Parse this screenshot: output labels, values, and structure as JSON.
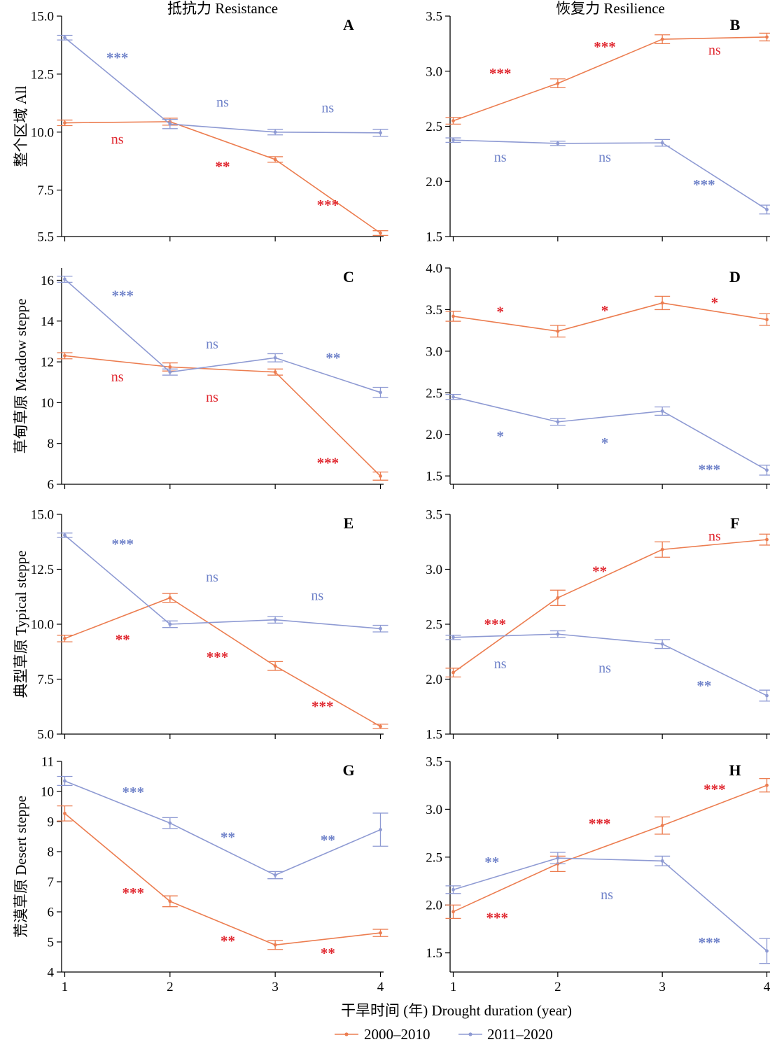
{
  "figure": {
    "column_titles": [
      "抵抗力 Resistance",
      "恢复力 Resilience"
    ],
    "x_axis_title": "干旱时间 (年) Drought duration (year)",
    "legend": [
      {
        "label": "2000–2010",
        "color": "#ec7d50"
      },
      {
        "label": "2011–2020",
        "color": "#8e9ad3"
      }
    ]
  },
  "chart_data": [
    {
      "type": "line",
      "panel": "A",
      "row_label": "整个区域 All",
      "x": [
        1,
        2,
        3,
        4
      ],
      "xlim": [
        0.97,
        4.03
      ],
      "ylim": [
        5.5,
        15.0
      ],
      "yticks": [
        5.5,
        7.5,
        10.0,
        12.5,
        15.0
      ],
      "yticklabels": [
        "5.5",
        "7.5",
        "10.0",
        "12.5",
        "15.0"
      ],
      "series": [
        {
          "name": "2000–2010",
          "values": [
            10.4,
            10.45,
            8.82,
            5.65
          ],
          "errors": [
            0.12,
            0.15,
            0.12,
            0.1
          ],
          "annotations": [
            {
              "text": "ns",
              "x": 1.5,
              "y": 9.5
            },
            {
              "text": "**",
              "x": 2.5,
              "y": 8.6
            },
            {
              "text": "***",
              "x": 3.5,
              "y": 6.95
            }
          ]
        },
        {
          "name": "2011–2020",
          "values": [
            14.07,
            10.35,
            10.0,
            9.97
          ],
          "errors": [
            0.1,
            0.2,
            0.12,
            0.15
          ],
          "annotations": [
            {
              "text": "***",
              "x": 1.5,
              "y": 13.3
            },
            {
              "text": "ns",
              "x": 2.5,
              "y": 11.1
            },
            {
              "text": "ns",
              "x": 3.5,
              "y": 10.85
            }
          ]
        }
      ]
    },
    {
      "type": "line",
      "panel": "B",
      "x": [
        1,
        2,
        3,
        4
      ],
      "xlim": [
        0.97,
        4.03
      ],
      "ylim": [
        1.5,
        3.5
      ],
      "yticks": [
        1.5,
        2.0,
        2.5,
        3.0,
        3.5
      ],
      "yticklabels": [
        "1.5",
        "2.0",
        "2.5",
        "3.0",
        "3.5"
      ],
      "series": [
        {
          "name": "2000–2010",
          "values": [
            2.55,
            2.89,
            3.29,
            3.31
          ],
          "errors": [
            0.03,
            0.04,
            0.04,
            0.035
          ],
          "annotations": [
            {
              "text": "***",
              "x": 1.45,
              "y": 3.0
            },
            {
              "text": "***",
              "x": 2.45,
              "y": 3.24
            },
            {
              "text": "ns",
              "x": 3.5,
              "y": 3.15
            }
          ]
        },
        {
          "name": "2011–2020",
          "values": [
            2.375,
            2.345,
            2.35,
            1.745
          ],
          "errors": [
            0.02,
            0.02,
            0.03,
            0.04
          ],
          "annotations": [
            {
              "text": "ns",
              "x": 1.45,
              "y": 2.18
            },
            {
              "text": "ns",
              "x": 2.45,
              "y": 2.18
            },
            {
              "text": "***",
              "x": 3.4,
              "y": 1.99
            }
          ]
        }
      ]
    },
    {
      "type": "line",
      "panel": "C",
      "row_label": "草甸草原 Meadow steppe",
      "x": [
        1,
        2,
        3,
        4
      ],
      "xlim": [
        0.97,
        4.03
      ],
      "ylim": [
        6.0,
        16.6
      ],
      "yticks": [
        6,
        8,
        10,
        12,
        14,
        16
      ],
      "yticklabels": [
        "6",
        "8",
        "10",
        "12",
        "14",
        "16"
      ],
      "series": [
        {
          "name": "2000–2010",
          "values": [
            12.3,
            11.75,
            11.5,
            6.4
          ],
          "errors": [
            0.15,
            0.2,
            0.15,
            0.2
          ],
          "annotations": [
            {
              "text": "ns",
              "x": 1.5,
              "y": 11.05
            },
            {
              "text": "ns",
              "x": 2.4,
              "y": 10.05
            },
            {
              "text": "***",
              "x": 3.5,
              "y": 7.15
            }
          ]
        },
        {
          "name": "2011–2020",
          "values": [
            16.05,
            11.5,
            12.2,
            10.5
          ],
          "errors": [
            0.15,
            0.15,
            0.2,
            0.25
          ],
          "annotations": [
            {
              "text": "***",
              "x": 1.55,
              "y": 15.35
            },
            {
              "text": "ns",
              "x": 2.4,
              "y": 12.65
            },
            {
              "text": "**",
              "x": 3.55,
              "y": 12.3
            }
          ]
        }
      ]
    },
    {
      "type": "line",
      "panel": "D",
      "x": [
        1,
        2,
        3,
        4
      ],
      "xlim": [
        0.97,
        4.03
      ],
      "ylim": [
        1.4,
        4.0
      ],
      "yticks": [
        1.5,
        2.0,
        2.5,
        3.0,
        3.5,
        4.0
      ],
      "yticklabels": [
        "1.5",
        "2.0",
        "2.5",
        "3.0",
        "3.5",
        "4.0"
      ],
      "series": [
        {
          "name": "2000–2010",
          "values": [
            3.42,
            3.24,
            3.58,
            3.38
          ],
          "errors": [
            0.06,
            0.07,
            0.08,
            0.07
          ],
          "annotations": [
            {
              "text": "*",
              "x": 1.45,
              "y": 3.5
            },
            {
              "text": "*",
              "x": 2.45,
              "y": 3.51
            },
            {
              "text": "*",
              "x": 3.5,
              "y": 3.61
            }
          ]
        },
        {
          "name": "2011–2020",
          "values": [
            2.45,
            2.15,
            2.28,
            1.57
          ],
          "errors": [
            0.03,
            0.04,
            0.05,
            0.06
          ],
          "annotations": [
            {
              "text": "*",
              "x": 1.45,
              "y": 2.0
            },
            {
              "text": "*",
              "x": 2.45,
              "y": 1.92
            },
            {
              "text": "***",
              "x": 3.45,
              "y": 1.6
            }
          ]
        }
      ]
    },
    {
      "type": "line",
      "panel": "E",
      "row_label": "典型草原 Typical steppe",
      "x": [
        1,
        2,
        3,
        4
      ],
      "xlim": [
        0.97,
        4.03
      ],
      "ylim": [
        5.0,
        15.0
      ],
      "yticks": [
        5.0,
        7.5,
        10.0,
        12.5,
        15.0
      ],
      "yticklabels": [
        "5.0",
        "7.5",
        "10.0",
        "12.5",
        "15.0"
      ],
      "series": [
        {
          "name": "2000–2010",
          "values": [
            9.35,
            11.2,
            8.1,
            5.35
          ],
          "errors": [
            0.15,
            0.2,
            0.2,
            0.1
          ],
          "annotations": [
            {
              "text": "**",
              "x": 1.55,
              "y": 9.4
            },
            {
              "text": "***",
              "x": 2.45,
              "y": 8.6
            },
            {
              "text": "***",
              "x": 3.45,
              "y": 6.35
            }
          ]
        },
        {
          "name": "2011–2020",
          "values": [
            14.05,
            10.0,
            10.2,
            9.8
          ],
          "errors": [
            0.1,
            0.15,
            0.15,
            0.15
          ],
          "annotations": [
            {
              "text": "***",
              "x": 1.55,
              "y": 13.75
            },
            {
              "text": "ns",
              "x": 2.4,
              "y": 11.95
            },
            {
              "text": "ns",
              "x": 3.4,
              "y": 11.1
            }
          ]
        }
      ]
    },
    {
      "type": "line",
      "panel": "F",
      "x": [
        1,
        2,
        3,
        4
      ],
      "xlim": [
        0.97,
        4.03
      ],
      "ylim": [
        1.5,
        3.5
      ],
      "yticks": [
        1.5,
        2.0,
        2.5,
        3.0,
        3.5
      ],
      "yticklabels": [
        "1.5",
        "2.0",
        "2.5",
        "3.0",
        "3.5"
      ],
      "series": [
        {
          "name": "2000–2010",
          "values": [
            2.06,
            2.74,
            3.18,
            3.27
          ],
          "errors": [
            0.04,
            0.07,
            0.07,
            0.05
          ],
          "annotations": [
            {
              "text": "***",
              "x": 1.4,
              "y": 2.52
            },
            {
              "text": "**",
              "x": 2.4,
              "y": 3.0
            },
            {
              "text": "ns",
              "x": 3.5,
              "y": 3.26
            }
          ]
        },
        {
          "name": "2011–2020",
          "values": [
            2.38,
            2.41,
            2.32,
            1.85
          ],
          "errors": [
            0.02,
            0.03,
            0.04,
            0.05
          ],
          "annotations": [
            {
              "text": "ns",
              "x": 1.45,
              "y": 2.1
            },
            {
              "text": "ns",
              "x": 2.45,
              "y": 2.06
            },
            {
              "text": "**",
              "x": 3.4,
              "y": 1.96
            }
          ]
        }
      ]
    },
    {
      "type": "line",
      "panel": "G",
      "row_label": "荒漠草原 Desert steppe",
      "x": [
        1,
        2,
        3,
        4
      ],
      "xlim": [
        0.97,
        4.03
      ],
      "ylim": [
        4.0,
        11.0
      ],
      "yticks": [
        4,
        5,
        6,
        7,
        8,
        9,
        10,
        11
      ],
      "yticklabels": [
        "4",
        "5",
        "6",
        "7",
        "8",
        "9",
        "10",
        "11"
      ],
      "series": [
        {
          "name": "2000–2010",
          "values": [
            9.27,
            6.35,
            4.9,
            5.3
          ],
          "errors": [
            0.25,
            0.18,
            0.15,
            0.12
          ],
          "annotations": [
            {
              "text": "***",
              "x": 1.65,
              "y": 6.7
            },
            {
              "text": "**",
              "x": 2.55,
              "y": 5.1
            },
            {
              "text": "**",
              "x": 3.5,
              "y": 4.7
            }
          ]
        },
        {
          "name": "2011–2020",
          "values": [
            10.35,
            8.95,
            7.22,
            8.73
          ],
          "errors": [
            0.15,
            0.18,
            0.12,
            0.55
          ],
          "annotations": [
            {
              "text": "***",
              "x": 1.65,
              "y": 10.05
            },
            {
              "text": "**",
              "x": 2.55,
              "y": 8.55
            },
            {
              "text": "**",
              "x": 3.5,
              "y": 8.45
            }
          ]
        }
      ]
    },
    {
      "type": "line",
      "panel": "H",
      "x": [
        1,
        2,
        3,
        4
      ],
      "xlim": [
        0.97,
        4.03
      ],
      "ylim": [
        1.3,
        3.5
      ],
      "yticks": [
        1.5,
        2.0,
        2.5,
        3.0,
        3.5
      ],
      "yticklabels": [
        "1.5",
        "2.0",
        "2.5",
        "3.0",
        "3.5"
      ],
      "series": [
        {
          "name": "2000–2010",
          "values": [
            1.93,
            2.43,
            2.83,
            3.25
          ],
          "errors": [
            0.07,
            0.08,
            0.09,
            0.07
          ],
          "annotations": [
            {
              "text": "***",
              "x": 1.42,
              "y": 1.89
            },
            {
              "text": "***",
              "x": 2.4,
              "y": 2.87
            },
            {
              "text": "***",
              "x": 3.5,
              "y": 3.23
            }
          ]
        },
        {
          "name": "2011–2020",
          "values": [
            2.16,
            2.49,
            2.46,
            1.52
          ],
          "errors": [
            0.04,
            0.06,
            0.05,
            0.13
          ],
          "annotations": [
            {
              "text": "**",
              "x": 1.37,
              "y": 2.47
            },
            {
              "text": "ns",
              "x": 2.47,
              "y": 2.06
            },
            {
              "text": "***",
              "x": 3.45,
              "y": 1.63
            }
          ]
        }
      ]
    }
  ]
}
